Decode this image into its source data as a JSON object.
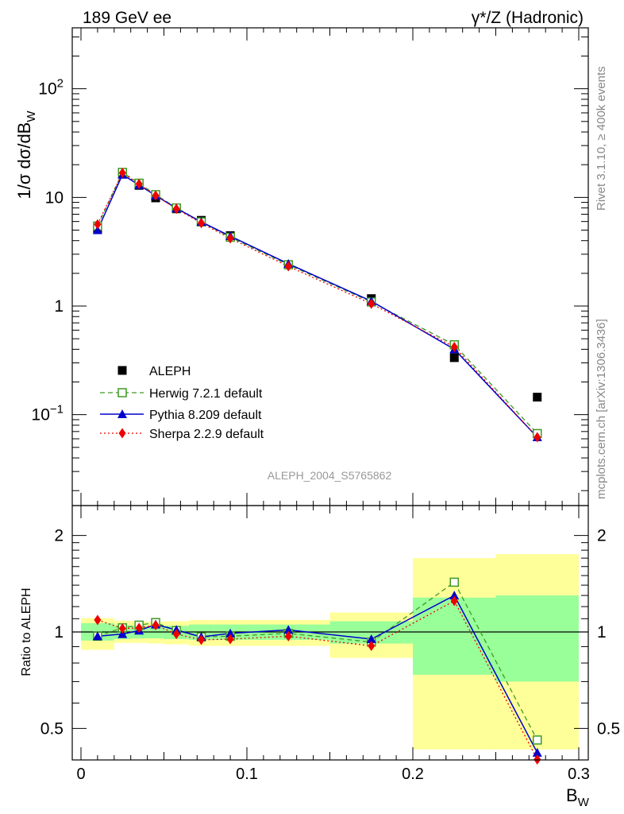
{
  "header": {
    "left_label": "189 GeV ee",
    "right_label": "γ*/Z (Hadronic)"
  },
  "side_labels": {
    "rivet": "Rivet 3.1.10, ≥ 400k events",
    "mcplots": "mcplots.cern.ch [arXiv:1306.3436]"
  },
  "analysis_id": "ALEPH_2004_S5765862",
  "chart_data": [
    {
      "type": "scatter",
      "role": "main",
      "ylabel": "1/σ dσ/dB_W",
      "xlabel": "B_W",
      "yscale": "log",
      "xlim": [
        0,
        0.3
      ],
      "ylim": [
        0.02,
        400
      ],
      "ytick_labels": [
        "10^-1",
        "1",
        "10",
        "10^2"
      ],
      "legend_position": "lower-left",
      "x": [
        0.01,
        0.025,
        0.035,
        0.045,
        0.0575,
        0.0725,
        0.09,
        0.125,
        0.175,
        0.225,
        0.275
      ],
      "series": [
        {
          "name": "ALEPH",
          "style": "data",
          "color": "#000000",
          "marker": "square-filled",
          "values": [
            5.15,
            16.4,
            12.9,
            9.9,
            7.85,
            6.15,
            4.45,
            2.4,
            1.17,
            0.335,
            0.145
          ]
        },
        {
          "name": "Herwig 7.2.1 default",
          "style": "dashed",
          "color": "#3f9a22",
          "marker": "square-open",
          "values": [
            5.45,
            17.0,
            13.5,
            10.6,
            8.0,
            5.95,
            4.3,
            2.4,
            1.09,
            0.44,
            0.067
          ]
        },
        {
          "name": "Pythia 8.209 default",
          "style": "solid",
          "color": "#0000cc",
          "marker": "triangle-filled",
          "values": [
            5.0,
            16.2,
            13.0,
            10.4,
            7.95,
            5.95,
            4.4,
            2.45,
            1.11,
            0.4,
            0.062
          ]
        },
        {
          "name": "Sherpa 2.2.9 default",
          "style": "dotted",
          "color": "#ee0000",
          "marker": "diamond-filled",
          "values": [
            5.65,
            16.8,
            13.3,
            10.4,
            7.85,
            5.8,
            4.2,
            2.32,
            1.05,
            0.42,
            0.062
          ]
        }
      ]
    },
    {
      "type": "line",
      "role": "ratio",
      "ylabel": "Ratio to ALEPH",
      "xlabel": "B_W",
      "yscale": "log",
      "xlim": [
        0,
        0.3
      ],
      "ylim": [
        0.43,
        2.35
      ],
      "ytick_labels": [
        "0.5",
        "1",
        "2"
      ],
      "xtick_labels": [
        "0",
        "0.1",
        "0.2",
        "0.3"
      ],
      "reference_line": 1,
      "x": [
        0.01,
        0.025,
        0.035,
        0.045,
        0.0575,
        0.0725,
        0.09,
        0.125,
        0.175,
        0.225,
        0.275
      ],
      "bands": {
        "x_edges": [
          0,
          0.02,
          0.03,
          0.04,
          0.05,
          0.065,
          0.08,
          0.1,
          0.15,
          0.2,
          0.25,
          0.3
        ],
        "inner_low": [
          0.94,
          0.95,
          0.955,
          0.955,
          0.95,
          0.945,
          0.945,
          0.945,
          0.92,
          0.735,
          0.7
        ],
        "inner_high": [
          1.065,
          1.05,
          1.045,
          1.04,
          1.045,
          1.055,
          1.055,
          1.055,
          1.08,
          1.28,
          1.3
        ],
        "outer_low": [
          0.88,
          0.925,
          0.925,
          0.92,
          0.915,
          0.905,
          0.905,
          0.905,
          0.83,
          0.43,
          0.43
        ],
        "outer_high": [
          1.105,
          1.085,
          1.08,
          1.075,
          1.08,
          1.09,
          1.09,
          1.09,
          1.15,
          1.7,
          1.75
        ],
        "inner_color": "#99ff99",
        "outer_color": "#ffff99"
      },
      "series": [
        {
          "name": "Herwig 7.2.1 default",
          "style": "dashed",
          "color": "#3f9a22",
          "marker": "square-open",
          "values": [
            0.97,
            1.03,
            1.05,
            1.07,
            1.01,
            0.965,
            0.97,
            0.99,
            0.93,
            1.43,
            0.46
          ]
        },
        {
          "name": "Pythia 8.209 default",
          "style": "solid",
          "color": "#0000cc",
          "marker": "triangle-filled",
          "values": [
            0.97,
            0.985,
            1.01,
            1.055,
            1.015,
            0.965,
            0.99,
            1.015,
            0.95,
            1.3,
            0.42
          ]
        },
        {
          "name": "Sherpa 2.2.9 default",
          "style": "dotted",
          "color": "#ee0000",
          "marker": "diamond-filled",
          "values": [
            1.09,
            1.025,
            1.03,
            1.05,
            0.985,
            0.945,
            0.95,
            0.97,
            0.905,
            1.25,
            0.4
          ]
        }
      ]
    }
  ]
}
